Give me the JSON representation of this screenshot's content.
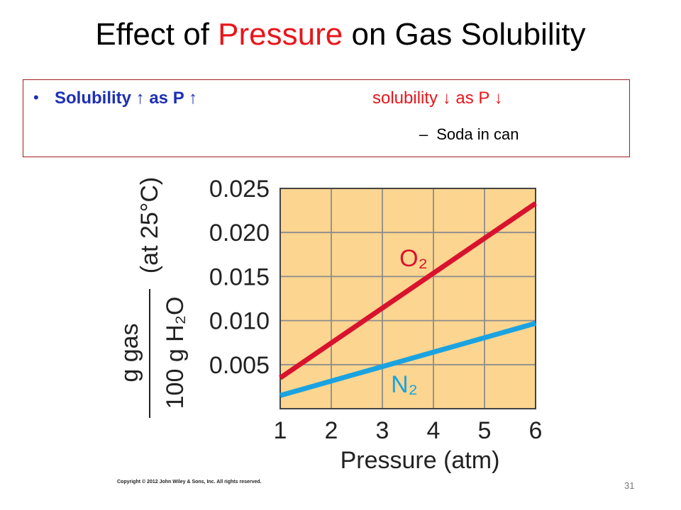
{
  "slide": {
    "title_part1": "Effect of ",
    "title_highlight": "Pressure",
    "title_part2": " on Gas Solubility",
    "bullet_left": "Solubility ↑ as P ↑",
    "bullet_right": "solubility ↓  as   P ↓",
    "sub_bullet": "Soda in can",
    "copyright": "Copyright © 2012 John Wiley & Sons, Inc. All rights reserved.",
    "page_number": "31"
  },
  "colors": {
    "title_highlight": "#e8161b",
    "bullet_blue": "#1d2fb4",
    "plot_background": "#fcd590",
    "grid": "#8c8c8c",
    "o2_line": "#d9122e",
    "n2_line": "#1aa3e0"
  },
  "chart_data": {
    "type": "line",
    "xlabel": "Pressure (atm)",
    "ylabel_numerator": "g gas",
    "ylabel_denominator": "100 g H₂O",
    "ylabel_condition": "(at 25°C)",
    "xlim": [
      1,
      6
    ],
    "ylim": [
      0,
      0.025
    ],
    "x_ticks": [
      1,
      2,
      3,
      4,
      5,
      6
    ],
    "x_tick_labels": [
      "1",
      "2",
      "3",
      "4",
      "5",
      "6"
    ],
    "y_ticks": [
      0.005,
      0.01,
      0.015,
      0.02,
      0.025
    ],
    "y_tick_labels": [
      "0.005",
      "0.010",
      "0.015",
      "0.020",
      "0.025"
    ],
    "grid": true,
    "series": [
      {
        "name": "O₂",
        "x": [
          1,
          6
        ],
        "y": [
          0.0035,
          0.0233
        ]
      },
      {
        "name": "N₂",
        "x": [
          1,
          6
        ],
        "y": [
          0.0015,
          0.0097
        ]
      }
    ]
  }
}
